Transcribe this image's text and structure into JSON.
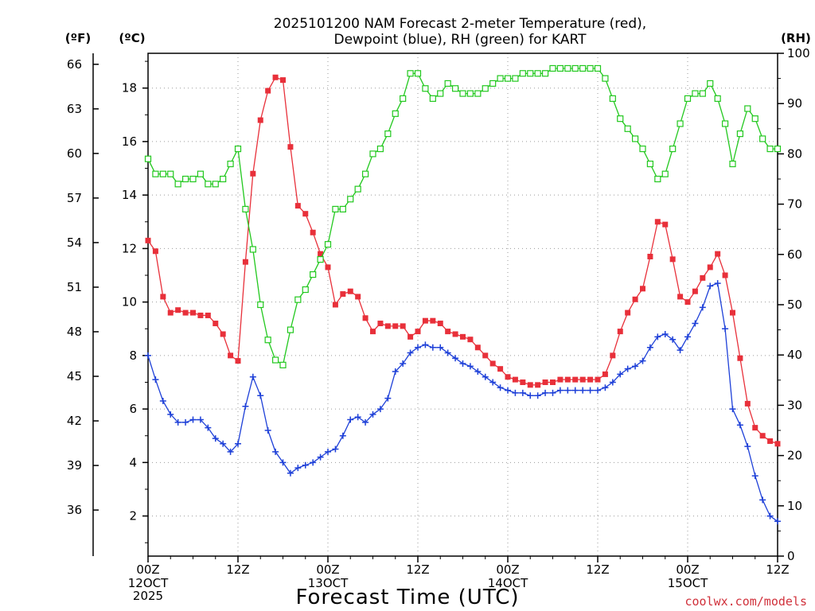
{
  "chart_data": {
    "type": "line",
    "title": "2025101200 NAM Forecast 2-meter Temperature (red),",
    "subtitle": "Dewpoint (blue), RH (green) for KART",
    "xlabel": "Forecast Time (UTC)",
    "credit": "coolwx.com/models",
    "y_left_c_label": "(ºC)",
    "y_left_f_label": "(ºF)",
    "y_right_label": "(RH)",
    "x_hours_range": [
      0,
      84
    ],
    "y_c_range": [
      0.5,
      19.3
    ],
    "y_rh_range": [
      0,
      100
    ],
    "x_ticks": [
      {
        "hour": 0,
        "label": "00Z",
        "sub": "12OCT",
        "sub2": "2025"
      },
      {
        "hour": 12,
        "label": "12Z",
        "sub": "",
        "sub2": ""
      },
      {
        "hour": 24,
        "label": "00Z",
        "sub": "13OCT",
        "sub2": ""
      },
      {
        "hour": 36,
        "label": "12Z",
        "sub": "",
        "sub2": ""
      },
      {
        "hour": 48,
        "label": "00Z",
        "sub": "14OCT",
        "sub2": ""
      },
      {
        "hour": 60,
        "label": "12Z",
        "sub": "",
        "sub2": ""
      },
      {
        "hour": 72,
        "label": "00Z",
        "sub": "15OCT",
        "sub2": ""
      },
      {
        "hour": 84,
        "label": "12Z",
        "sub": "",
        "sub2": ""
      }
    ],
    "y_c_ticks": [
      2,
      4,
      6,
      8,
      10,
      12,
      14,
      16,
      18
    ],
    "y_f_ticks": [
      36,
      39,
      42,
      45,
      48,
      51,
      54,
      57,
      60,
      63,
      66
    ],
    "y_rh_ticks": [
      0,
      10,
      20,
      30,
      40,
      50,
      60,
      70,
      80,
      90,
      100
    ],
    "grid": true,
    "series": [
      {
        "name": "Temperature",
        "color": "#e8303a",
        "marker": "filled-square",
        "axis": "c",
        "x": [
          0,
          1,
          2,
          3,
          4,
          5,
          6,
          7,
          8,
          9,
          10,
          11,
          12,
          13,
          14,
          15,
          16,
          17,
          18,
          19,
          20,
          21,
          22,
          23,
          24,
          25,
          26,
          27,
          28,
          29,
          30,
          31,
          32,
          33,
          34,
          35,
          36,
          37,
          38,
          39,
          40,
          41,
          42,
          43,
          44,
          45,
          46,
          47,
          48,
          49,
          50,
          51,
          52,
          53,
          54,
          55,
          56,
          57,
          58,
          59,
          60,
          61,
          62,
          63,
          64,
          65,
          66,
          67,
          68,
          69,
          70,
          71,
          72,
          73,
          74,
          75,
          76,
          77,
          78,
          79,
          80,
          81,
          82,
          83,
          84
        ],
        "values": [
          12.3,
          11.9,
          10.2,
          9.6,
          9.7,
          9.6,
          9.6,
          9.5,
          9.5,
          9.2,
          8.8,
          8.0,
          7.8,
          11.5,
          14.8,
          16.8,
          17.9,
          18.4,
          18.3,
          15.8,
          13.6,
          13.3,
          12.6,
          11.8,
          11.3,
          9.9,
          10.3,
          10.4,
          10.2,
          9.4,
          8.9,
          9.2,
          9.1,
          9.1,
          9.1,
          8.7,
          8.9,
          9.3,
          9.3,
          9.2,
          8.9,
          8.8,
          8.7,
          8.6,
          8.3,
          8.0,
          7.7,
          7.5,
          7.2,
          7.1,
          7.0,
          6.9,
          6.9,
          7.0,
          7.0,
          7.1,
          7.1,
          7.1,
          7.1,
          7.1,
          7.1,
          7.3,
          8.0,
          8.9,
          9.6,
          10.1,
          10.5,
          11.7,
          13.0,
          12.9,
          11.6,
          10.2,
          10.0,
          10.4,
          10.9,
          11.3,
          11.8,
          11.0,
          9.6,
          7.9,
          6.2,
          5.3,
          5.0,
          4.8,
          4.7
        ]
      },
      {
        "name": "Dewpoint",
        "color": "#1e40d8",
        "marker": "plus",
        "axis": "c",
        "x": [
          0,
          1,
          2,
          3,
          4,
          5,
          6,
          7,
          8,
          9,
          10,
          11,
          12,
          13,
          14,
          15,
          16,
          17,
          18,
          19,
          20,
          21,
          22,
          23,
          24,
          25,
          26,
          27,
          28,
          29,
          30,
          31,
          32,
          33,
          34,
          35,
          36,
          37,
          38,
          39,
          40,
          41,
          42,
          43,
          44,
          45,
          46,
          47,
          48,
          49,
          50,
          51,
          52,
          53,
          54,
          55,
          56,
          57,
          58,
          59,
          60,
          61,
          62,
          63,
          64,
          65,
          66,
          67,
          68,
          69,
          70,
          71,
          72,
          73,
          74,
          75,
          76,
          77,
          78,
          79,
          80,
          81,
          82,
          83,
          84
        ],
        "values": [
          8.0,
          7.1,
          6.3,
          5.8,
          5.5,
          5.5,
          5.6,
          5.6,
          5.3,
          4.9,
          4.7,
          4.4,
          4.7,
          6.1,
          7.2,
          6.5,
          5.2,
          4.4,
          4.0,
          3.6,
          3.8,
          3.9,
          4.0,
          4.2,
          4.4,
          4.5,
          5.0,
          5.6,
          5.7,
          5.5,
          5.8,
          6.0,
          6.4,
          7.4,
          7.7,
          8.1,
          8.3,
          8.4,
          8.3,
          8.3,
          8.1,
          7.9,
          7.7,
          7.6,
          7.4,
          7.2,
          7.0,
          6.8,
          6.7,
          6.6,
          6.6,
          6.5,
          6.5,
          6.6,
          6.6,
          6.7,
          6.7,
          6.7,
          6.7,
          6.7,
          6.7,
          6.8,
          7.0,
          7.3,
          7.5,
          7.6,
          7.8,
          8.3,
          8.7,
          8.8,
          8.6,
          8.2,
          8.7,
          9.2,
          9.8,
          10.6,
          10.7,
          9.0,
          6.0,
          5.4,
          4.6,
          3.5,
          2.6,
          2.0,
          1.8
        ]
      },
      {
        "name": "RH",
        "color": "#22c81e",
        "marker": "open-square",
        "axis": "rh",
        "x": [
          0,
          1,
          2,
          3,
          4,
          5,
          6,
          7,
          8,
          9,
          10,
          11,
          12,
          13,
          14,
          15,
          16,
          17,
          18,
          19,
          20,
          21,
          22,
          23,
          24,
          25,
          26,
          27,
          28,
          29,
          30,
          31,
          32,
          33,
          34,
          35,
          36,
          37,
          38,
          39,
          40,
          41,
          42,
          43,
          44,
          45,
          46,
          47,
          48,
          49,
          50,
          51,
          52,
          53,
          54,
          55,
          56,
          57,
          58,
          59,
          60,
          61,
          62,
          63,
          64,
          65,
          66,
          67,
          68,
          69,
          70,
          71,
          72,
          73,
          74,
          75,
          76,
          77,
          78,
          79,
          80,
          81,
          82,
          83,
          84
        ],
        "values": [
          79,
          76,
          76,
          76,
          74,
          75,
          75,
          76,
          74,
          74,
          75,
          78,
          81,
          69,
          61,
          50,
          43,
          39,
          38,
          45,
          51,
          53,
          56,
          59,
          62,
          69,
          69,
          71,
          73,
          76,
          80,
          81,
          84,
          88,
          91,
          96,
          96,
          93,
          91,
          92,
          94,
          93,
          92,
          92,
          92,
          93,
          94,
          95,
          95,
          95,
          96,
          96,
          96,
          96,
          97,
          97,
          97,
          97,
          97,
          97,
          97,
          95,
          91,
          87,
          85,
          83,
          81,
          78,
          75,
          76,
          81,
          86,
          91,
          92,
          92,
          94,
          91,
          86,
          78,
          84,
          89,
          87,
          83,
          81,
          81
        ]
      }
    ]
  }
}
